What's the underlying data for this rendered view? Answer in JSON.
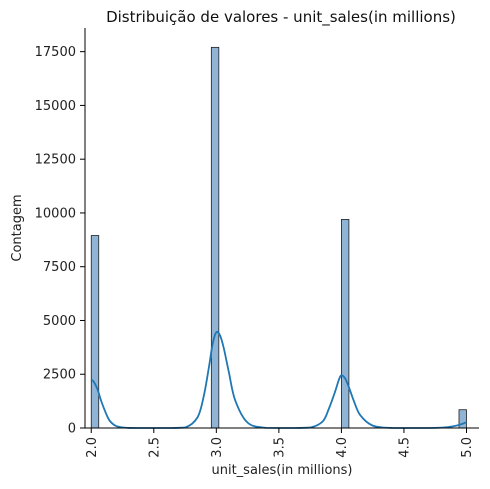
{
  "chart_data": {
    "type": "bar",
    "subtype": "histogram-with-kde",
    "title": "Distribuição de valores - unit_sales(in millions)",
    "xlabel": "unit_sales(in millions)",
    "ylabel": "Contagem",
    "xlim": [
      1.95,
      5.1
    ],
    "ylim": [
      0,
      18600
    ],
    "x_ticks": [
      "2.0",
      "2.5",
      "3.0",
      "3.5",
      "4.0",
      "4.5",
      "5.0"
    ],
    "x_tick_values": [
      2.0,
      2.5,
      3.0,
      3.5,
      4.0,
      4.5,
      5.0
    ],
    "y_ticks": [
      "0",
      "2500",
      "5000",
      "7500",
      "10000",
      "12500",
      "15000",
      "17500"
    ],
    "y_tick_values": [
      0,
      2500,
      5000,
      7500,
      10000,
      12500,
      15000,
      17500
    ],
    "grid": false,
    "legend": "none",
    "bars": [
      {
        "x_start": 2.0,
        "x_end": 2.06,
        "count": 8950
      },
      {
        "x_start": 2.96,
        "x_end": 3.02,
        "count": 17700
      },
      {
        "x_start": 4.0,
        "x_end": 4.06,
        "count": 9700
      },
      {
        "x_start": 4.94,
        "x_end": 5.0,
        "count": 850
      }
    ],
    "kde": {
      "points_x": [
        2.0,
        2.02,
        2.05,
        2.08,
        2.12,
        2.15,
        2.2,
        2.28,
        2.4,
        2.6,
        2.75,
        2.85,
        2.9,
        2.94,
        2.97,
        3.0,
        3.03,
        3.06,
        3.1,
        3.15,
        3.25,
        3.4,
        3.6,
        3.75,
        3.85,
        3.9,
        3.95,
        3.98,
        4.0,
        4.03,
        4.06,
        4.1,
        4.15,
        4.25,
        4.4,
        4.6,
        4.75,
        4.85,
        4.92,
        4.97,
        5.0
      ],
      "points_y": [
        2250,
        2150,
        1800,
        1250,
        650,
        320,
        90,
        10,
        0,
        0,
        20,
        500,
        1500,
        2800,
        3900,
        4450,
        4300,
        3700,
        2600,
        1300,
        250,
        5,
        0,
        20,
        300,
        900,
        1700,
        2250,
        2450,
        2300,
        1900,
        1250,
        600,
        110,
        2,
        0,
        5,
        40,
        110,
        200,
        270
      ]
    },
    "colors": {
      "bar_fill": "#8fb4d6",
      "bar_edge": "#1f1f1f",
      "kde_line": "#1f77b4",
      "axis": "#000000"
    }
  }
}
